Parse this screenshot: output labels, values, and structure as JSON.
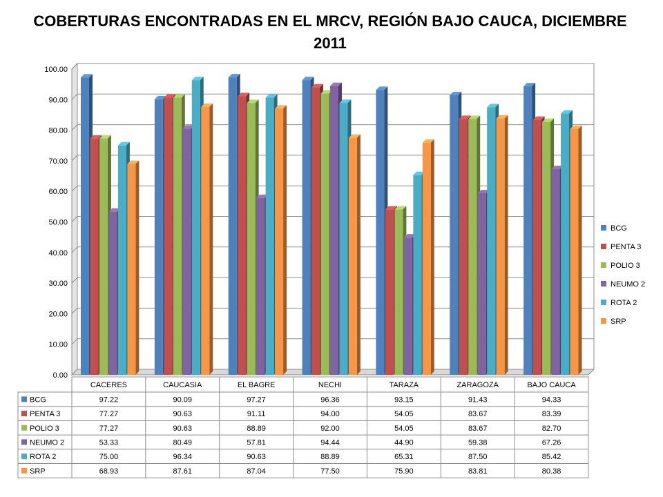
{
  "chart_data": {
    "type": "bar",
    "title_line1": "COBERTURAS ENCONTRADAS EN EL MRCV, REGIÓN BAJO CAUCA, DICIEMBRE",
    "title_line2": "2011",
    "xlabel": "",
    "ylabel": "",
    "ylim": [
      0,
      100
    ],
    "yticks": [
      "0.00",
      "10.00",
      "20.00",
      "30.00",
      "40.00",
      "50.00",
      "60.00",
      "70.00",
      "80.00",
      "90.00",
      "100.00"
    ],
    "grid": true,
    "legend_position": "right",
    "categories": [
      "CACERES",
      "CAUCASIA",
      "EL BAGRE",
      "NECHI",
      "TARAZA",
      "ZARAGOZA",
      "BAJO CAUCA"
    ],
    "series": [
      {
        "name": "BCG",
        "color": "#4F81BD",
        "values": [
          97.22,
          90.09,
          97.27,
          96.36,
          93.15,
          91.43,
          94.33
        ],
        "labels": [
          "97.22",
          "90.09",
          "97.27",
          "96.36",
          "93.15",
          "91.43",
          "94.33"
        ]
      },
      {
        "name": "PENTA 3",
        "color": "#C0504D",
        "values": [
          77.27,
          90.63,
          91.11,
          94.0,
          54.05,
          83.67,
          83.39
        ],
        "labels": [
          "77.27",
          "90.63",
          "91.11",
          "94.00",
          "54.05",
          "83.67",
          "83.39"
        ]
      },
      {
        "name": "POLIO 3",
        "color": "#9BBB59",
        "values": [
          77.27,
          90.63,
          88.89,
          92.0,
          54.05,
          83.67,
          82.7
        ],
        "labels": [
          "77.27",
          "90.63",
          "88.89",
          "92.00",
          "54.05",
          "83.67",
          "82.70"
        ]
      },
      {
        "name": "NEUMO 2",
        "color": "#8064A2",
        "values": [
          53.33,
          80.49,
          57.81,
          94.44,
          44.9,
          59.38,
          67.26
        ],
        "labels": [
          "53.33",
          "80.49",
          "57.81",
          "94.44",
          "44.90",
          "59.38",
          "67.26"
        ]
      },
      {
        "name": "ROTA 2",
        "color": "#4BACC6",
        "values": [
          75.0,
          96.34,
          90.63,
          88.89,
          65.31,
          87.5,
          85.42
        ],
        "labels": [
          "75.00",
          "96.34",
          "90.63",
          "88.89",
          "65.31",
          "87.50",
          "85.42"
        ]
      },
      {
        "name": "SRP",
        "color": "#F79646",
        "values": [
          68.93,
          87.61,
          87.04,
          77.5,
          75.9,
          83.81,
          80.38
        ],
        "labels": [
          "68.93",
          "87.61",
          "87.04",
          "77.50",
          "75.90",
          "83.81",
          "80.38"
        ]
      }
    ]
  }
}
